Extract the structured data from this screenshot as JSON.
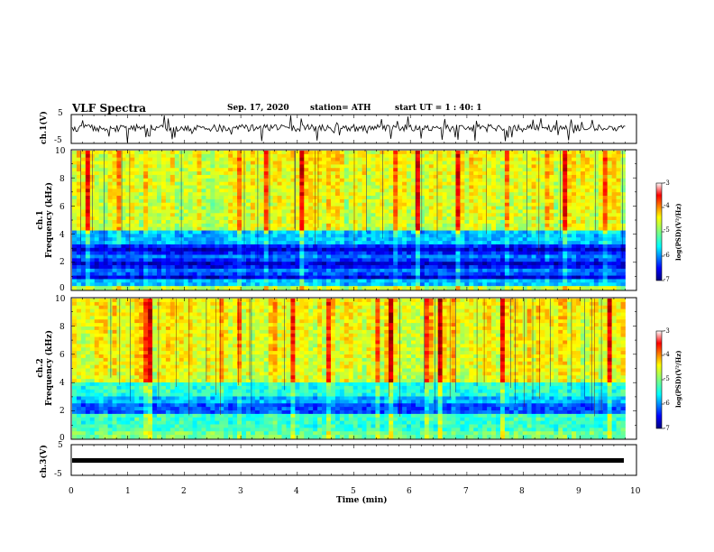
{
  "header": {
    "title": "VLF Spectra",
    "date": "Sep. 17, 2020",
    "station": "station= ATH",
    "start": "start UT =  1 : 40: 1"
  },
  "chart_data": [
    {
      "type": "line",
      "panel": "ch1-waveform",
      "ylabel": "ch.1(V)",
      "ylim": [
        -5,
        5
      ],
      "y_tick_labels": [
        "5",
        "-5"
      ],
      "xlim": [
        0,
        10
      ],
      "trace_color": "#000000"
    },
    {
      "type": "heatmap",
      "panel": "ch1-spectrogram",
      "ylabel": "ch.1\nFrequency (kHz)",
      "ylabel_lines": [
        "ch.1",
        "Frequency (kHz)"
      ],
      "ylim": [
        0,
        10
      ],
      "y_tick_labels": [
        "0",
        "2",
        "4",
        "6",
        "8",
        "10"
      ],
      "xlim": [
        0,
        9.8
      ],
      "colorbar": {
        "label": "log(PSD)(V²/Hz)",
        "range": [
          -7,
          -3
        ],
        "tick_labels": [
          "-3",
          "-4",
          "-5",
          "-6",
          "-7"
        ]
      }
    },
    {
      "type": "heatmap",
      "panel": "ch2-spectrogram",
      "ylabel": "ch.2\nFrequency (kHz)",
      "ylabel_lines": [
        "ch.2",
        "Frequency (kHz)"
      ],
      "ylim": [
        0,
        10
      ],
      "y_tick_labels": [
        "0",
        "2",
        "4",
        "6",
        "8",
        "10"
      ],
      "xlim": [
        0,
        9.8
      ],
      "colorbar": {
        "label": "log(PSD)(V²/Hz)",
        "range": [
          -7,
          -3
        ],
        "tick_labels": [
          "-3",
          "-4",
          "-5",
          "-6",
          "-7"
        ]
      }
    },
    {
      "type": "line",
      "panel": "ch3-waveform",
      "ylabel": "ch.3(V)",
      "ylim": [
        -5,
        5
      ],
      "y_tick_labels": [
        "5",
        "-5"
      ],
      "xlim": [
        0,
        10
      ],
      "trace_level": 0,
      "trace_color": "#000000"
    }
  ],
  "x_axis": {
    "label": "Time (min)",
    "range": [
      0,
      10
    ],
    "tick_labels": [
      "0",
      "1",
      "2",
      "3",
      "4",
      "5",
      "6",
      "7",
      "8",
      "9",
      "10"
    ]
  },
  "colors": {
    "jet": [
      "#00007f",
      "#0000ff",
      "#007fff",
      "#00ffff",
      "#7fff7f",
      "#ffff00",
      "#ff7f00",
      "#ff0000",
      "#7f0000"
    ]
  }
}
